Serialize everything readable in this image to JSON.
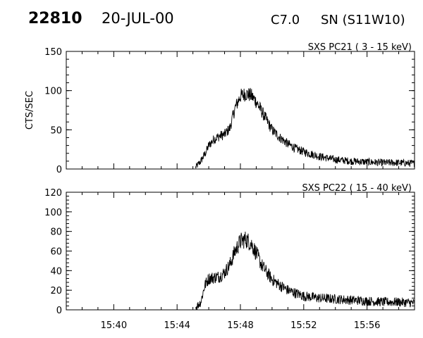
{
  "header": {
    "event_id": "22810",
    "date": "20-JUL-00",
    "flare_class": "C7.0",
    "location": "SN (S11W10)"
  },
  "chart_data": [
    {
      "type": "line",
      "title": "SXS PC21  (  3 - 15 keV)",
      "ylabel": "CTS/SEC",
      "xlabel": "",
      "xlim": [
        "15:37",
        "15:59"
      ],
      "ylim": [
        0,
        150
      ],
      "yticks": [
        0,
        50,
        100,
        150
      ],
      "xticks": [
        "15:40",
        "15:44",
        "15:48",
        "15:52",
        "15:56"
      ],
      "grid": false,
      "noise": 7,
      "series": [
        {
          "x": [
            "15:45:10",
            "15:45:30",
            "15:45:50",
            "15:46:00",
            "15:46:20",
            "15:46:40",
            "15:47:00",
            "15:47:20",
            "15:47:40",
            "15:48:00",
            "15:48:20",
            "15:48:40",
            "15:49:00",
            "15:49:20",
            "15:49:40",
            "15:50:00",
            "15:50:30",
            "15:51:00",
            "15:51:30",
            "15:52:00",
            "15:53:00",
            "15:54:00",
            "15:55:00",
            "15:56:00",
            "15:57:00",
            "15:58:00",
            "15:59:00"
          ],
          "values": [
            2,
            10,
            22,
            30,
            38,
            42,
            44,
            52,
            78,
            93,
            96,
            94,
            86,
            74,
            62,
            50,
            40,
            32,
            26,
            22,
            16,
            12,
            10,
            9,
            8,
            8,
            7
          ]
        }
      ]
    },
    {
      "type": "line",
      "title": "SXS PC22  ( 15 - 40 keV)",
      "ylabel": "",
      "xlabel": "",
      "xlim": [
        "15:37",
        "15:59"
      ],
      "ylim": [
        0,
        120
      ],
      "yticks": [
        0,
        20,
        40,
        60,
        80,
        100,
        120
      ],
      "xticks": [
        "15:40",
        "15:44",
        "15:48",
        "15:52",
        "15:56"
      ],
      "grid": false,
      "noise": 7,
      "series": [
        {
          "x": [
            "15:45:10",
            "15:45:30",
            "15:45:45",
            "15:46:00",
            "15:46:20",
            "15:46:40",
            "15:47:00",
            "15:47:20",
            "15:47:40",
            "15:48:00",
            "15:48:20",
            "15:48:40",
            "15:49:00",
            "15:49:20",
            "15:49:40",
            "15:50:00",
            "15:50:30",
            "15:51:00",
            "15:51:30",
            "15:52:00",
            "15:53:00",
            "15:54:00",
            "15:55:00",
            "15:56:00",
            "15:57:00",
            "15:58:00",
            "15:59:00"
          ],
          "values": [
            2,
            8,
            25,
            32,
            33,
            34,
            38,
            46,
            60,
            70,
            72,
            68,
            58,
            46,
            38,
            31,
            25,
            20,
            17,
            14,
            12,
            11,
            10,
            9,
            8,
            8,
            7
          ]
        }
      ]
    }
  ]
}
